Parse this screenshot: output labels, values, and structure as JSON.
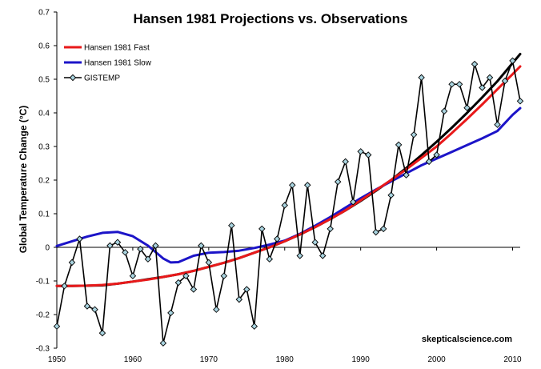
{
  "chart_data": {
    "type": "line",
    "title": "Hansen 1981 Projections vs. Observations",
    "xlabel": "",
    "ylabel": "Global Temperature Change (°C)",
    "xlim": [
      1950,
      2011
    ],
    "ylim": [
      -0.3,
      0.7
    ],
    "x_ticks": [
      "1950",
      "1960",
      "1970",
      "1980",
      "1990",
      "2000",
      "2010"
    ],
    "y_ticks": [
      "-0.3",
      "-0.2",
      "-0.1",
      "0",
      "0.1",
      "0.2",
      "0.3",
      "0.4",
      "0.5",
      "0.6",
      "0.7"
    ],
    "grid": false,
    "legend_position": "top-left",
    "watermark": "skepticalscience.com",
    "series": [
      {
        "name": "Hansen 1981 Fast",
        "color": "#e8191a",
        "x": [
          1950,
          1952,
          1954,
          1956,
          1958,
          1960,
          1962,
          1964,
          1966,
          1968,
          1970,
          1972,
          1974,
          1976,
          1978,
          1980,
          1982,
          1984,
          1986,
          1988,
          1990,
          1992,
          1994,
          1996,
          1998,
          2000,
          2002,
          2004,
          2006,
          2008,
          2010,
          2011
        ],
        "y": [
          -0.115,
          -0.115,
          -0.114,
          -0.112,
          -0.108,
          -0.102,
          -0.096,
          -0.088,
          -0.08,
          -0.07,
          -0.058,
          -0.046,
          -0.032,
          -0.016,
          0.0,
          0.018,
          0.038,
          0.06,
          0.084,
          0.11,
          0.14,
          0.17,
          0.2,
          0.232,
          0.266,
          0.3,
          0.34,
          0.382,
          0.425,
          0.47,
          0.515,
          0.538
        ]
      },
      {
        "name": "Hansen 1981 Slow",
        "color": "#1c14c8",
        "x": [
          1950,
          1952,
          1954,
          1956,
          1958,
          1960,
          1962,
          1964,
          1965,
          1966,
          1968,
          1970,
          1972,
          1974,
          1976,
          1978,
          1980,
          1982,
          1984,
          1986,
          1988,
          1990,
          1992,
          1994,
          1996,
          1998,
          2000,
          2002,
          2004,
          2006,
          2008,
          2010,
          2011
        ],
        "y": [
          0.004,
          0.018,
          0.032,
          0.043,
          0.046,
          0.033,
          0.005,
          -0.033,
          -0.045,
          -0.044,
          -0.025,
          -0.016,
          -0.014,
          -0.01,
          -0.002,
          0.008,
          0.02,
          0.04,
          0.064,
          0.09,
          0.118,
          0.146,
          0.172,
          0.196,
          0.22,
          0.244,
          0.264,
          0.284,
          0.304,
          0.324,
          0.346,
          0.394,
          0.414
        ]
      },
      {
        "name": "GISTEMP",
        "color": "#000000",
        "marker_color": "#a9d4e0",
        "x": [
          1950,
          1951,
          1952,
          1953,
          1954,
          1955,
          1956,
          1957,
          1958,
          1959,
          1960,
          1961,
          1962,
          1963,
          1964,
          1965,
          1966,
          1967,
          1968,
          1969,
          1970,
          1971,
          1972,
          1973,
          1974,
          1975,
          1976,
          1977,
          1978,
          1979,
          1980,
          1981,
          1982,
          1983,
          1984,
          1985,
          1986,
          1987,
          1988,
          1989,
          1990,
          1991,
          1992,
          1993,
          1994,
          1995,
          1996,
          1997,
          1998,
          1999,
          2000,
          2001,
          2002,
          2003,
          2004,
          2005,
          2006,
          2007,
          2008,
          2009,
          2010,
          2011
        ],
        "y": [
          -0.235,
          -0.115,
          -0.045,
          0.025,
          -0.175,
          -0.185,
          -0.255,
          0.005,
          0.015,
          -0.015,
          -0.085,
          -0.005,
          -0.035,
          0.005,
          -0.285,
          -0.195,
          -0.105,
          -0.085,
          -0.125,
          0.005,
          -0.045,
          -0.185,
          -0.085,
          0.065,
          -0.155,
          -0.125,
          -0.235,
          0.055,
          -0.035,
          0.025,
          0.125,
          0.185,
          -0.025,
          0.185,
          0.015,
          -0.025,
          0.055,
          0.195,
          0.255,
          0.135,
          0.285,
          0.275,
          0.045,
          0.055,
          0.155,
          0.305,
          0.215,
          0.335,
          0.505,
          0.255,
          0.275,
          0.405,
          0.485,
          0.485,
          0.415,
          0.545,
          0.475,
          0.505,
          0.365,
          0.495,
          0.555,
          0.435
        ]
      },
      {
        "name": "",
        "color": "#000000",
        "x": [
          1950,
          1952,
          1954,
          1956,
          1958,
          1960,
          1962,
          1964,
          1966,
          1968,
          1970,
          1972,
          1974,
          1976,
          1978,
          1980,
          1982,
          1984,
          1986,
          1988,
          1990,
          1992,
          1994,
          1996,
          1998,
          2000,
          2002,
          2004,
          2006,
          2008,
          2010,
          2011
        ],
        "y": [
          -0.115,
          -0.115,
          -0.114,
          -0.113,
          -0.108,
          -0.102,
          -0.095,
          -0.088,
          -0.08,
          -0.07,
          -0.058,
          -0.046,
          -0.032,
          -0.016,
          0.0,
          0.018,
          0.038,
          0.06,
          0.084,
          0.11,
          0.138,
          0.168,
          0.2,
          0.236,
          0.274,
          0.314,
          0.356,
          0.4,
          0.446,
          0.494,
          0.548,
          0.575
        ]
      }
    ]
  }
}
